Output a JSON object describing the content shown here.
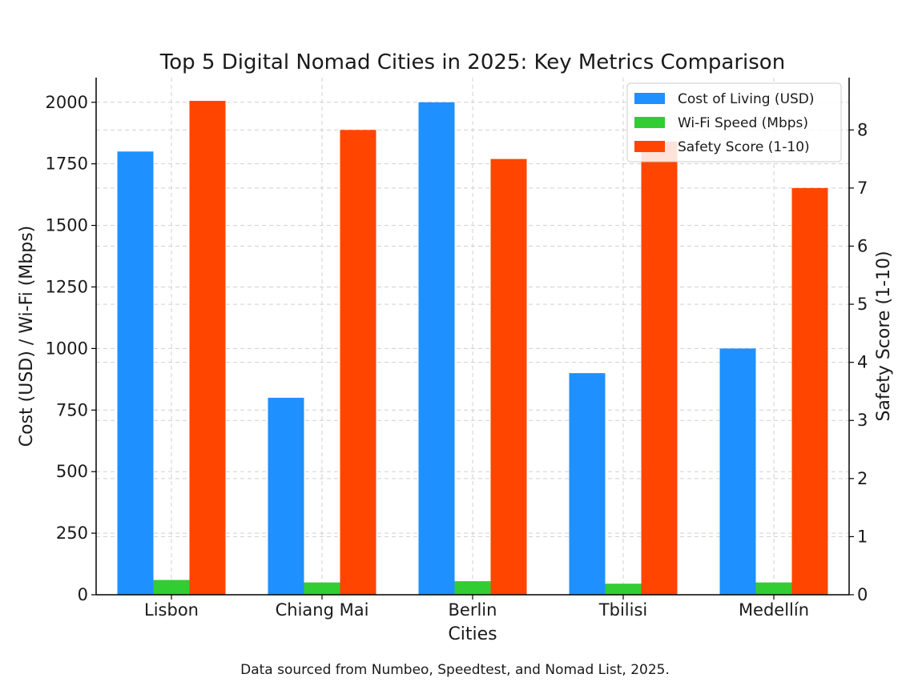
{
  "chart_data": {
    "type": "bar",
    "title": "Top 5 Digital Nomad Cities in 2025: Key Metrics Comparison",
    "xlabel": "Cities",
    "ylabel": "Cost (USD) / Wi-Fi (Mbps)",
    "y2label": "Safety Score (1-10)",
    "categories": [
      "Lisbon",
      "Chiang Mai",
      "Berlin",
      "Tbilisi",
      "Medellín"
    ],
    "series": [
      {
        "name": "Cost of Living (USD)",
        "axis": "left",
        "color": "#1e90ff",
        "values": [
          1800,
          800,
          2000,
          900,
          1000
        ]
      },
      {
        "name": "Wi-Fi Speed (Mbps)",
        "axis": "left",
        "color": "#32cd32",
        "values": [
          60,
          50,
          55,
          45,
          50
        ]
      },
      {
        "name": "Safety Score (1-10)",
        "axis": "right",
        "color": "#ff4500",
        "values": [
          8.5,
          8.0,
          7.5,
          7.8,
          7.0
        ]
      }
    ],
    "ylim": [
      0,
      2100
    ],
    "y2lim": [
      0,
      8.9
    ],
    "yticks": [
      0,
      250,
      500,
      750,
      1000,
      1250,
      1500,
      1750,
      2000
    ],
    "y2ticks": [
      0,
      1,
      2,
      3,
      4,
      5,
      6,
      7,
      8
    ],
    "grid": true,
    "legend_position": "top-right",
    "footnote": "Data sourced from Numbeo, Speedtest, and Nomad List, 2025."
  }
}
